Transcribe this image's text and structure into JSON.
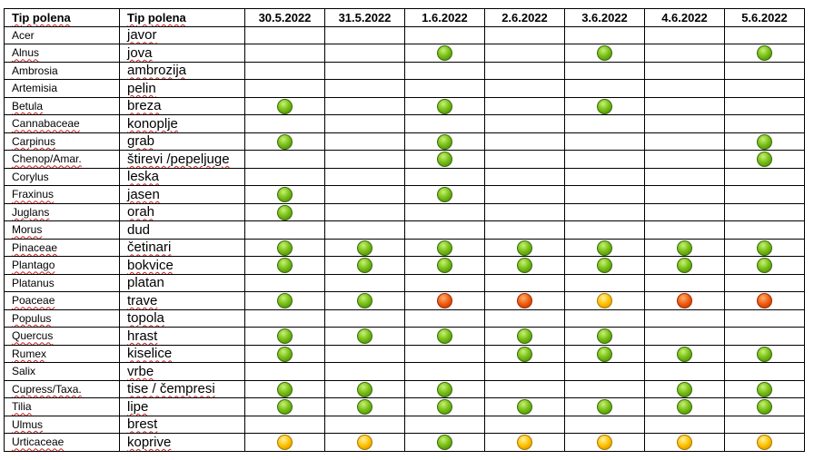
{
  "header": {
    "col_latin": "Tip polena",
    "col_slo": "Tip polena",
    "dates": [
      "30.5.2022",
      "31.5.2022",
      "1.6.2022",
      "2.6.2022",
      "3.6.2022",
      "4.6.2022",
      "5.6.2022"
    ]
  },
  "level_colors": {
    "low": "#7cc318",
    "moderate": "#ffc000",
    "high": "#f05a10"
  },
  "rows": [
    {
      "latin": "Acer",
      "slo": "javor",
      "levels": [
        null,
        null,
        null,
        null,
        null,
        null,
        null
      ]
    },
    {
      "latin": "Alnus",
      "slo": "jova",
      "levels": [
        null,
        null,
        "low",
        null,
        "low",
        null,
        "low"
      ]
    },
    {
      "latin": "Ambrosia",
      "slo": "ambrozija",
      "levels": [
        null,
        null,
        null,
        null,
        null,
        null,
        null
      ]
    },
    {
      "latin": "Artemisia",
      "slo": "pelin",
      "levels": [
        null,
        null,
        null,
        null,
        null,
        null,
        null
      ]
    },
    {
      "latin": "Betula",
      "slo": "breza",
      "levels": [
        "low",
        null,
        "low",
        null,
        "low",
        null,
        null
      ]
    },
    {
      "latin": "Cannabaceae",
      "slo": "konoplje",
      "levels": [
        null,
        null,
        null,
        null,
        null,
        null,
        null
      ]
    },
    {
      "latin": "Carpinus",
      "slo": "grab",
      "levels": [
        "low",
        null,
        "low",
        null,
        null,
        null,
        "low"
      ]
    },
    {
      "latin": "Chenop/Amar.",
      "slo": "štirevi /pepeljuge",
      "levels": [
        null,
        null,
        "low",
        null,
        null,
        null,
        "low"
      ]
    },
    {
      "latin": "Corylus",
      "slo": "leska",
      "levels": [
        null,
        null,
        null,
        null,
        null,
        null,
        null
      ]
    },
    {
      "latin": "Fraxinus",
      "slo": "jasen",
      "levels": [
        "low",
        null,
        "low",
        null,
        null,
        null,
        null
      ]
    },
    {
      "latin": "Juglans",
      "slo": "orah",
      "levels": [
        "low",
        null,
        null,
        null,
        null,
        null,
        null
      ]
    },
    {
      "latin": "Morus",
      "slo": "dud",
      "levels": [
        null,
        null,
        null,
        null,
        null,
        null,
        null
      ]
    },
    {
      "latin": "Pinaceae",
      "slo": "četinari",
      "levels": [
        "low",
        "low",
        "low",
        "low",
        "low",
        "low",
        "low"
      ]
    },
    {
      "latin": "Plantago",
      "slo": "bokvice",
      "levels": [
        "low",
        "low",
        "low",
        "low",
        "low",
        "low",
        "low"
      ]
    },
    {
      "latin": "Platanus",
      "slo": "platan",
      "levels": [
        null,
        null,
        null,
        null,
        null,
        null,
        null
      ]
    },
    {
      "latin": "Poaceae",
      "slo": "trave",
      "levels": [
        "low",
        "low",
        "high",
        "high",
        "moderate",
        "high",
        "high"
      ]
    },
    {
      "latin": "Populus",
      "slo": "topola",
      "levels": [
        null,
        null,
        null,
        null,
        null,
        null,
        null
      ]
    },
    {
      "latin": "Quercus",
      "slo": "hrast",
      "levels": [
        "low",
        "low",
        "low",
        "low",
        "low",
        null,
        null
      ]
    },
    {
      "latin": "Rumex",
      "slo": "kiselice",
      "levels": [
        "low",
        null,
        null,
        "low",
        "low",
        "low",
        "low"
      ]
    },
    {
      "latin": "Salix",
      "slo": "vrbe",
      "levels": [
        null,
        null,
        null,
        null,
        null,
        null,
        null
      ]
    },
    {
      "latin": "Cupress/Taxa.",
      "slo": "tise / čempresi",
      "levels": [
        "low",
        "low",
        "low",
        null,
        null,
        "low",
        "low"
      ]
    },
    {
      "latin": "Tilia",
      "slo": "lipe",
      "levels": [
        "low",
        "low",
        "low",
        "low",
        "low",
        "low",
        "low"
      ]
    },
    {
      "latin": "Ulmus",
      "slo": "brest",
      "levels": [
        null,
        null,
        null,
        null,
        null,
        null,
        null
      ]
    },
    {
      "latin": "Urticaceae",
      "slo": "koprive",
      "levels": [
        "moderate",
        "moderate",
        "low",
        "moderate",
        "moderate",
        "moderate",
        "moderate"
      ]
    }
  ]
}
